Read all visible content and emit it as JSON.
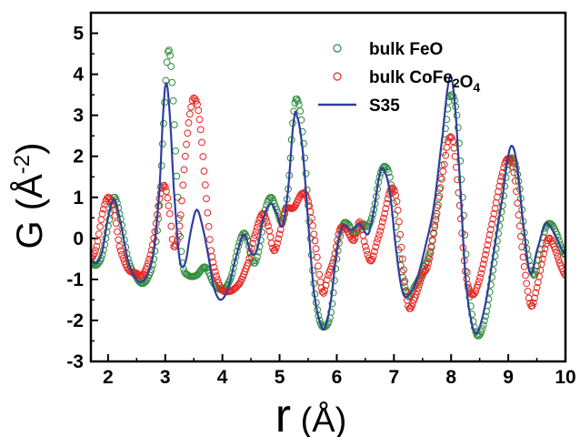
{
  "chart_data": {
    "type": "line",
    "xlabel": "r (Å)",
    "ylabel": "G (Å-2)",
    "xlim": [
      1.7,
      10.0
    ],
    "ylim": [
      -3.0,
      5.5
    ],
    "x_ticks": [
      "2",
      "3",
      "4",
      "5",
      "6",
      "7",
      "8",
      "9",
      "10"
    ],
    "y_ticks": [
      "-3",
      "-2",
      "-1",
      "0",
      "1",
      "2",
      "3",
      "4",
      "5"
    ],
    "legend_position": "top-right",
    "series": [
      {
        "name": "bulk FeO",
        "style": "open-circles",
        "color": "#2e8b3a",
        "points": [
          [
            1.7,
            -0.6
          ],
          [
            1.8,
            -0.65
          ],
          [
            1.9,
            -0.4
          ],
          [
            2.0,
            0.3
          ],
          [
            2.1,
            1.0
          ],
          [
            2.2,
            0.6
          ],
          [
            2.35,
            -0.5
          ],
          [
            2.5,
            -0.95
          ],
          [
            2.6,
            -1.1
          ],
          [
            2.7,
            -0.95
          ],
          [
            2.8,
            -0.5
          ],
          [
            2.9,
            0.8
          ],
          [
            2.97,
            2.8
          ],
          [
            3.05,
            4.55
          ],
          [
            3.12,
            3.8
          ],
          [
            3.22,
            1.0
          ],
          [
            3.3,
            -0.6
          ],
          [
            3.4,
            -0.9
          ],
          [
            3.55,
            -0.9
          ],
          [
            3.7,
            -0.7
          ],
          [
            3.85,
            -1.1
          ],
          [
            4.0,
            -1.25
          ],
          [
            4.15,
            -0.95
          ],
          [
            4.3,
            -0.1
          ],
          [
            4.4,
            0.1
          ],
          [
            4.55,
            -0.6
          ],
          [
            4.65,
            -0.2
          ],
          [
            4.75,
            0.7
          ],
          [
            4.85,
            1.0
          ],
          [
            4.95,
            0.7
          ],
          [
            5.05,
            0.4
          ],
          [
            5.15,
            1.2
          ],
          [
            5.25,
            3.1
          ],
          [
            5.32,
            3.35
          ],
          [
            5.4,
            2.6
          ],
          [
            5.5,
            0.8
          ],
          [
            5.6,
            -1.1
          ],
          [
            5.7,
            -2.0
          ],
          [
            5.8,
            -2.15
          ],
          [
            5.9,
            -1.8
          ],
          [
            6.0,
            -0.5
          ],
          [
            6.1,
            0.3
          ],
          [
            6.2,
            0.35
          ],
          [
            6.3,
            0.1
          ],
          [
            6.45,
            0.35
          ],
          [
            6.55,
            0.3
          ],
          [
            6.65,
            0.7
          ],
          [
            6.75,
            1.5
          ],
          [
            6.85,
            1.75
          ],
          [
            6.95,
            1.3
          ],
          [
            7.1,
            -0.5
          ],
          [
            7.25,
            -1.4
          ],
          [
            7.35,
            -1.2
          ],
          [
            7.5,
            -0.8
          ],
          [
            7.65,
            -0.2
          ],
          [
            7.8,
            1.2
          ],
          [
            7.92,
            2.9
          ],
          [
            8.0,
            3.5
          ],
          [
            8.1,
            3.0
          ],
          [
            8.2,
            1.0
          ],
          [
            8.3,
            -1.2
          ],
          [
            8.45,
            -2.35
          ],
          [
            8.6,
            -1.9
          ],
          [
            8.75,
            -0.6
          ],
          [
            8.9,
            0.8
          ],
          [
            9.0,
            1.8
          ],
          [
            9.1,
            1.9
          ],
          [
            9.2,
            1.2
          ],
          [
            9.3,
            -0.1
          ],
          [
            9.45,
            -0.9
          ],
          [
            9.55,
            -0.4
          ],
          [
            9.65,
            0.25
          ],
          [
            9.75,
            0.35
          ],
          [
            9.85,
            0.1
          ],
          [
            9.95,
            -0.3
          ],
          [
            10.0,
            -0.4
          ]
        ]
      },
      {
        "name": "bulk CoFe2O4",
        "style": "open-circles",
        "color": "#e8231f",
        "points": [
          [
            1.7,
            -0.5
          ],
          [
            1.8,
            -0.2
          ],
          [
            1.9,
            0.6
          ],
          [
            2.0,
            1.0
          ],
          [
            2.1,
            0.7
          ],
          [
            2.2,
            -0.2
          ],
          [
            2.35,
            -0.75
          ],
          [
            2.5,
            -0.85
          ],
          [
            2.6,
            -0.9
          ],
          [
            2.7,
            -0.6
          ],
          [
            2.8,
            0.0
          ],
          [
            2.92,
            1.1
          ],
          [
            3.0,
            1.25
          ],
          [
            3.08,
            0.6
          ],
          [
            3.15,
            -0.2
          ],
          [
            3.25,
            0.3
          ],
          [
            3.35,
            2.0
          ],
          [
            3.45,
            3.2
          ],
          [
            3.52,
            3.4
          ],
          [
            3.6,
            2.9
          ],
          [
            3.7,
            1.3
          ],
          [
            3.8,
            -0.3
          ],
          [
            3.95,
            -1.15
          ],
          [
            4.1,
            -1.3
          ],
          [
            4.3,
            -1.1
          ],
          [
            4.45,
            -0.6
          ],
          [
            4.55,
            0.0
          ],
          [
            4.7,
            0.6
          ],
          [
            4.8,
            0.3
          ],
          [
            4.9,
            -0.3
          ],
          [
            5.0,
            0.1
          ],
          [
            5.1,
            0.7
          ],
          [
            5.25,
            0.75
          ],
          [
            5.4,
            1.1
          ],
          [
            5.5,
            0.9
          ],
          [
            5.6,
            0.1
          ],
          [
            5.75,
            -1.3
          ],
          [
            5.85,
            -0.9
          ],
          [
            5.95,
            -0.5
          ],
          [
            6.05,
            0.2
          ],
          [
            6.15,
            0.25
          ],
          [
            6.3,
            -0.05
          ],
          [
            6.4,
            0.4
          ],
          [
            6.5,
            -0.2
          ],
          [
            6.6,
            -0.55
          ],
          [
            6.7,
            -0.1
          ],
          [
            6.8,
            0.4
          ],
          [
            6.95,
            1.2
          ],
          [
            7.05,
            0.9
          ],
          [
            7.15,
            -0.5
          ],
          [
            7.25,
            -1.65
          ],
          [
            7.35,
            -1.5
          ],
          [
            7.5,
            -0.9
          ],
          [
            7.6,
            -0.6
          ],
          [
            7.75,
            0.6
          ],
          [
            7.88,
            1.8
          ],
          [
            7.97,
            2.45
          ],
          [
            8.05,
            2.2
          ],
          [
            8.15,
            0.8
          ],
          [
            8.25,
            -0.8
          ],
          [
            8.35,
            -1.35
          ],
          [
            8.45,
            -1.2
          ],
          [
            8.6,
            -0.4
          ],
          [
            8.75,
            0.6
          ],
          [
            8.9,
            1.6
          ],
          [
            9.0,
            1.95
          ],
          [
            9.1,
            1.6
          ],
          [
            9.2,
            0.3
          ],
          [
            9.3,
            -0.9
          ],
          [
            9.4,
            -1.65
          ],
          [
            9.5,
            -1.2
          ],
          [
            9.6,
            -0.5
          ],
          [
            9.7,
            0.0
          ],
          [
            9.8,
            -0.2
          ],
          [
            9.9,
            -0.6
          ],
          [
            10.0,
            -0.9
          ]
        ]
      },
      {
        "name": "S35",
        "style": "line",
        "color": "#2e3f9e",
        "points": [
          [
            1.7,
            -0.55
          ],
          [
            1.8,
            -0.6
          ],
          [
            1.9,
            -0.3
          ],
          [
            2.0,
            0.5
          ],
          [
            2.1,
            0.95
          ],
          [
            2.2,
            0.5
          ],
          [
            2.35,
            -0.55
          ],
          [
            2.5,
            -1.0
          ],
          [
            2.6,
            -1.05
          ],
          [
            2.7,
            -0.85
          ],
          [
            2.8,
            -0.3
          ],
          [
            2.9,
            1.2
          ],
          [
            2.97,
            3.2
          ],
          [
            3.02,
            3.8
          ],
          [
            3.08,
            3.0
          ],
          [
            3.15,
            1.2
          ],
          [
            3.25,
            -0.5
          ],
          [
            3.35,
            -0.6
          ],
          [
            3.45,
            0.2
          ],
          [
            3.55,
            0.7
          ],
          [
            3.65,
            0.3
          ],
          [
            3.75,
            -0.4
          ],
          [
            3.85,
            -1.2
          ],
          [
            3.97,
            -1.5
          ],
          [
            4.1,
            -1.2
          ],
          [
            4.25,
            -0.4
          ],
          [
            4.38,
            0.1
          ],
          [
            4.5,
            -0.35
          ],
          [
            4.6,
            -0.3
          ],
          [
            4.72,
            0.5
          ],
          [
            4.85,
            0.85
          ],
          [
            4.95,
            0.6
          ],
          [
            5.05,
            0.3
          ],
          [
            5.15,
            1.2
          ],
          [
            5.25,
            2.9
          ],
          [
            5.3,
            3.0
          ],
          [
            5.4,
            2.2
          ],
          [
            5.5,
            0.4
          ],
          [
            5.6,
            -1.3
          ],
          [
            5.72,
            -2.1
          ],
          [
            5.8,
            -2.15
          ],
          [
            5.9,
            -1.5
          ],
          [
            6.0,
            -0.3
          ],
          [
            6.1,
            0.3
          ],
          [
            6.25,
            0.2
          ],
          [
            6.4,
            0.35
          ],
          [
            6.55,
            0.1
          ],
          [
            6.65,
            0.7
          ],
          [
            6.75,
            1.55
          ],
          [
            6.8,
            1.7
          ],
          [
            6.92,
            1.2
          ],
          [
            7.05,
            -0.4
          ],
          [
            7.15,
            -1.3
          ],
          [
            7.25,
            -1.4
          ],
          [
            7.4,
            -1.0
          ],
          [
            7.55,
            -0.2
          ],
          [
            7.7,
            0.8
          ],
          [
            7.85,
            2.5
          ],
          [
            7.97,
            3.9
          ],
          [
            8.05,
            3.5
          ],
          [
            8.15,
            1.5
          ],
          [
            8.25,
            -0.9
          ],
          [
            8.35,
            -2.0
          ],
          [
            8.45,
            -2.3
          ],
          [
            8.6,
            -1.6
          ],
          [
            8.75,
            -0.3
          ],
          [
            8.9,
            1.0
          ],
          [
            9.0,
            2.0
          ],
          [
            9.07,
            2.25
          ],
          [
            9.15,
            1.8
          ],
          [
            9.25,
            0.5
          ],
          [
            9.38,
            -0.85
          ],
          [
            9.5,
            -0.3
          ],
          [
            9.65,
            0.35
          ],
          [
            9.75,
            0.25
          ],
          [
            9.85,
            0.0
          ],
          [
            9.95,
            -0.3
          ],
          [
            10.0,
            -0.4
          ]
        ]
      }
    ]
  }
}
